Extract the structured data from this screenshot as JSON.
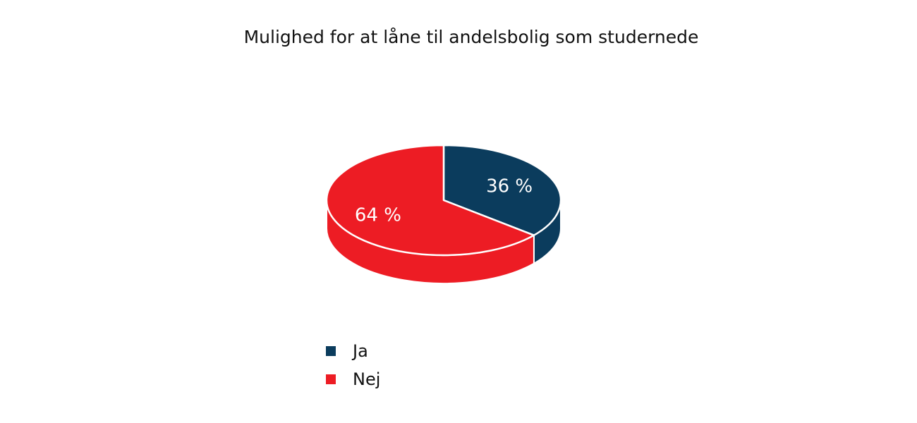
{
  "chart_data": {
    "type": "pie",
    "title": "Mulighed for at låne til andelsbolig som studernede",
    "categories": [
      "Ja",
      "Nej"
    ],
    "values": [
      36,
      64
    ],
    "labels": [
      "36 %",
      "64 %"
    ],
    "colors": [
      "#0b3c5d",
      "#ed1c24"
    ],
    "legend_position": "bottom",
    "three_d": true
  }
}
